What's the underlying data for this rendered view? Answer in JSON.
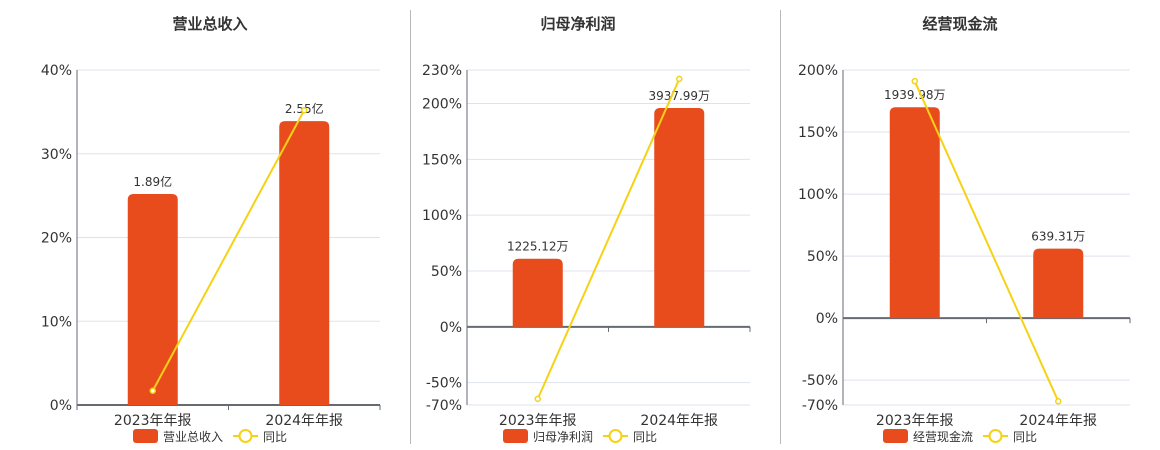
{
  "colors": {
    "bar": "#e84c1d",
    "line": "#f5d215",
    "grid": "#dde3ee",
    "axis": "#666a73",
    "text": "#333333",
    "divider": "#b8b8b8"
  },
  "legend": {
    "yoy_label": "同比"
  },
  "chart_data": [
    {
      "type": "bar",
      "title": "营业总收入",
      "categories": [
        "2023年年报",
        "2024年年报"
      ],
      "series": [
        {
          "name": "营业总收入",
          "kind": "bar",
          "labels": [
            "1.89亿",
            "2.55亿"
          ],
          "values": [
            1.89,
            2.55
          ],
          "unit": "亿",
          "visual_pct": [
            25.2,
            33.9
          ]
        },
        {
          "name": "同比",
          "kind": "line",
          "values": [
            1.7,
            35.2
          ],
          "unit": "%"
        }
      ],
      "yticks": [
        "40%",
        "30%",
        "20%",
        "10%",
        "0%"
      ],
      "ylim": [
        0,
        40
      ],
      "xlabel": "",
      "ylabel": "",
      "grid": true,
      "legend_position": "bottom"
    },
    {
      "type": "bar",
      "title": "归母净利润",
      "categories": [
        "2023年年报",
        "2024年年报"
      ],
      "series": [
        {
          "name": "归母净利润",
          "kind": "bar",
          "labels": [
            "1225.12万",
            "3937.99万"
          ],
          "values": [
            1225.12,
            3937.99
          ],
          "unit": "万",
          "visual_pct": [
            61,
            196
          ]
        },
        {
          "name": "同比",
          "kind": "line",
          "values": [
            -64.5,
            222
          ],
          "unit": "%"
        }
      ],
      "yticks": [
        "230%",
        "200%",
        "150%",
        "100%",
        "50%",
        "0%",
        "-50%",
        "-70%"
      ],
      "ylim": [
        -70,
        230
      ],
      "xlabel": "",
      "ylabel": "",
      "grid": true,
      "legend_position": "bottom"
    },
    {
      "type": "bar",
      "title": "经营现金流",
      "categories": [
        "2023年年报",
        "2024年年报"
      ],
      "series": [
        {
          "name": "经营现金流",
          "kind": "bar",
          "labels": [
            "1939.98万",
            "639.31万"
          ],
          "values": [
            1939.98,
            639.31
          ],
          "unit": "万",
          "visual_pct": [
            170,
            56
          ]
        },
        {
          "name": "同比",
          "kind": "line",
          "values": [
            191,
            -67
          ],
          "unit": "%"
        }
      ],
      "yticks": [
        "200%",
        "150%",
        "100%",
        "50%",
        "0%",
        "-50%",
        "-70%"
      ],
      "ylim": [
        -70,
        200
      ],
      "xlabel": "",
      "ylabel": "",
      "grid": true,
      "legend_position": "bottom"
    }
  ]
}
